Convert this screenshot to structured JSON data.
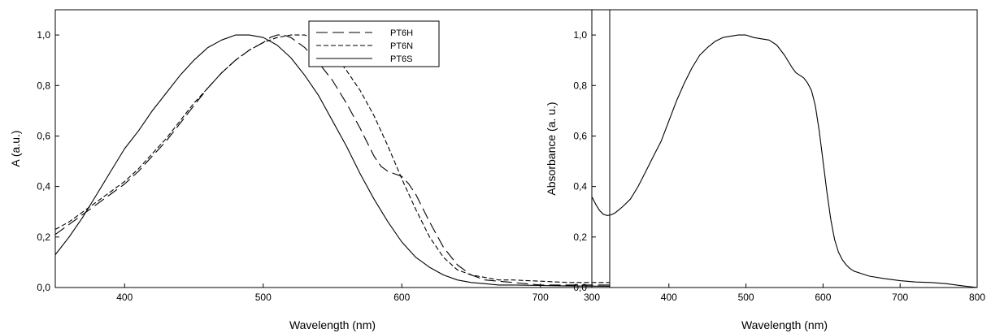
{
  "chart_data": [
    {
      "type": "line",
      "xlabel": "Wavelength (nm)",
      "ylabel": "A (a.u.)",
      "xlim": [
        350,
        750
      ],
      "ylim": [
        0,
        1.1
      ],
      "xticks": [
        "400",
        "500",
        "600",
        "700"
      ],
      "yticks": [
        "0,0",
        "0,2",
        "0,4",
        "0,6",
        "0,8",
        "1,0"
      ],
      "grid": false,
      "legend_position": "top-right",
      "series": [
        {
          "name": "PT6H",
          "dash": "long-dash",
          "x": [
            350,
            360,
            370,
            380,
            390,
            400,
            410,
            420,
            430,
            440,
            450,
            460,
            470,
            480,
            490,
            500,
            505,
            510,
            515,
            520,
            525,
            530,
            540,
            550,
            560,
            570,
            580,
            585,
            590,
            595,
            600,
            605,
            610,
            620,
            630,
            640,
            650,
            660,
            680,
            700,
            720,
            750
          ],
          "y": [
            0.21,
            0.25,
            0.29,
            0.33,
            0.37,
            0.41,
            0.46,
            0.52,
            0.58,
            0.65,
            0.72,
            0.79,
            0.85,
            0.9,
            0.94,
            0.97,
            0.99,
            1.0,
            1.0,
            0.99,
            0.97,
            0.95,
            0.89,
            0.82,
            0.73,
            0.63,
            0.52,
            0.48,
            0.46,
            0.45,
            0.44,
            0.41,
            0.37,
            0.26,
            0.16,
            0.09,
            0.05,
            0.03,
            0.02,
            0.01,
            0.01,
            0.01
          ]
        },
        {
          "name": "PT6N",
          "dash": "short-dash",
          "x": [
            350,
            360,
            370,
            380,
            390,
            400,
            410,
            420,
            430,
            440,
            450,
            460,
            470,
            480,
            490,
            500,
            510,
            520,
            530,
            540,
            550,
            560,
            570,
            580,
            590,
            600,
            610,
            620,
            630,
            640,
            650,
            660,
            670,
            680,
            700,
            720,
            750
          ],
          "y": [
            0.23,
            0.26,
            0.3,
            0.34,
            0.38,
            0.42,
            0.47,
            0.53,
            0.59,
            0.66,
            0.73,
            0.79,
            0.85,
            0.9,
            0.94,
            0.97,
            0.99,
            1.0,
            1.0,
            0.98,
            0.93,
            0.86,
            0.78,
            0.68,
            0.56,
            0.43,
            0.31,
            0.2,
            0.12,
            0.07,
            0.05,
            0.04,
            0.03,
            0.03,
            0.025,
            0.02,
            0.02
          ]
        },
        {
          "name": "PT6S",
          "dash": "solid",
          "x": [
            350,
            360,
            370,
            380,
            390,
            400,
            410,
            420,
            430,
            440,
            450,
            460,
            470,
            480,
            490,
            500,
            510,
            520,
            530,
            540,
            550,
            560,
            570,
            580,
            590,
            600,
            610,
            620,
            630,
            640,
            650,
            660,
            670,
            680,
            700,
            720,
            750
          ],
          "y": [
            0.13,
            0.2,
            0.28,
            0.37,
            0.46,
            0.55,
            0.62,
            0.7,
            0.77,
            0.84,
            0.9,
            0.95,
            0.98,
            1.0,
            1.0,
            0.99,
            0.96,
            0.91,
            0.84,
            0.76,
            0.66,
            0.56,
            0.45,
            0.35,
            0.26,
            0.18,
            0.12,
            0.08,
            0.05,
            0.03,
            0.02,
            0.015,
            0.01,
            0.01,
            0.008,
            0.006,
            0.005
          ]
        }
      ]
    },
    {
      "type": "line",
      "xlabel": "Wavelength (nm)",
      "ylabel": "Absorbance (a. u.)",
      "xlim": [
        300,
        800
      ],
      "ylim": [
        0,
        1.1
      ],
      "xticks": [
        "300",
        "400",
        "500",
        "600",
        "700",
        "800"
      ],
      "yticks": [
        "0,0",
        "0,2",
        "0,4",
        "0,6",
        "0,8",
        "1,0"
      ],
      "grid": false,
      "series": [
        {
          "dash": "solid",
          "x": [
            300,
            305,
            310,
            315,
            320,
            325,
            330,
            340,
            350,
            360,
            370,
            380,
            390,
            400,
            410,
            420,
            430,
            440,
            450,
            460,
            470,
            480,
            490,
            500,
            510,
            520,
            530,
            540,
            550,
            560,
            565,
            570,
            575,
            580,
            585,
            590,
            595,
            600,
            605,
            610,
            615,
            620,
            625,
            630,
            635,
            640,
            650,
            660,
            680,
            700,
            720,
            740,
            760,
            780,
            800
          ],
          "y": [
            0.36,
            0.33,
            0.305,
            0.29,
            0.285,
            0.288,
            0.295,
            0.32,
            0.35,
            0.4,
            0.46,
            0.52,
            0.58,
            0.66,
            0.74,
            0.81,
            0.87,
            0.92,
            0.95,
            0.975,
            0.99,
            0.995,
            1.0,
            1.0,
            0.99,
            0.985,
            0.98,
            0.96,
            0.92,
            0.87,
            0.85,
            0.84,
            0.83,
            0.81,
            0.78,
            0.72,
            0.62,
            0.5,
            0.38,
            0.27,
            0.19,
            0.14,
            0.11,
            0.09,
            0.075,
            0.065,
            0.055,
            0.045,
            0.035,
            0.027,
            0.022,
            0.02,
            0.015,
            0.007,
            0.0
          ]
        }
      ]
    }
  ]
}
